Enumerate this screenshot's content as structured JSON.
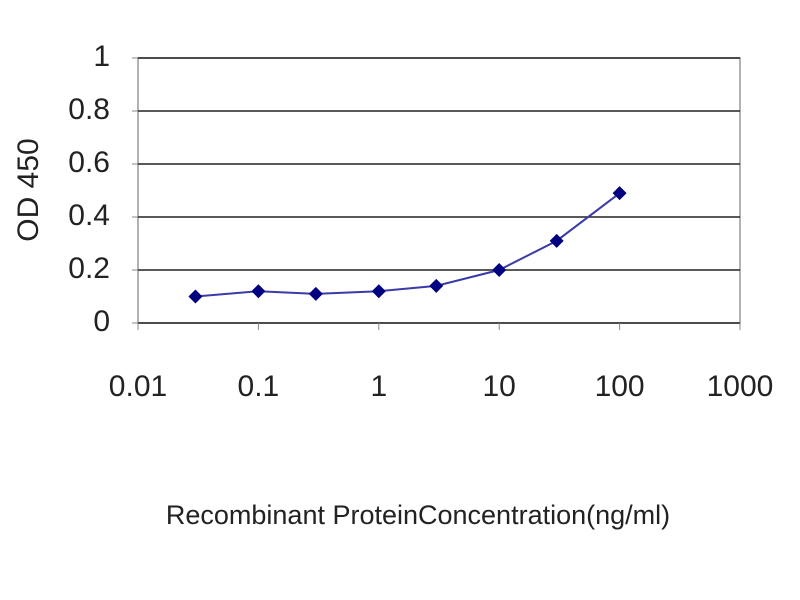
{
  "chart_data": {
    "type": "line",
    "y_label": "OD 450",
    "x_label": "Recombinant ProteinConcentration(ng/ml)",
    "x": [
      0.03,
      0.1,
      0.3,
      1,
      3,
      10,
      30,
      100
    ],
    "values": [
      0.1,
      0.12,
      0.11,
      0.12,
      0.14,
      0.2,
      0.31,
      0.49
    ],
    "color": "#000080",
    "line_color": "#3a3aa8",
    "xscale": "log",
    "xlim": [
      0.01,
      1000
    ],
    "xticks": [
      0.01,
      0.1,
      1,
      10,
      100,
      1000
    ],
    "ylim": [
      0,
      1
    ],
    "yticks": [
      0,
      0.2,
      0.4,
      0.6,
      0.8,
      1
    ],
    "grid": true
  }
}
